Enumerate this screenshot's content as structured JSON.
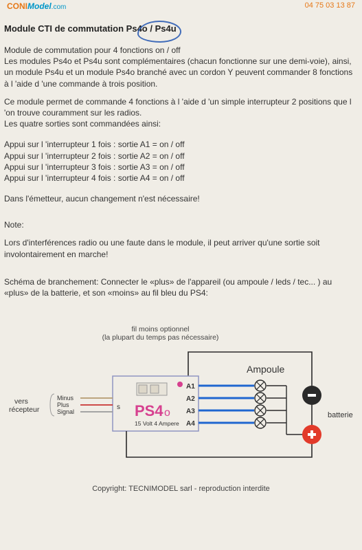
{
  "header": {
    "logo_orange_part": "CONI",
    "logo_blue_italic_part": "Model",
    "logo_dotcom": ".com",
    "phone": "04 75 03 13 87"
  },
  "title": "Module CTI de commutation Ps4o / Ps4u",
  "para1": "Module de commutation pour 4 fonctions on / off",
  "para1b": "Les modules Ps4o et Ps4u sont complémentaires (chacun fonctionne sur une demi-voie), ainsi, un module Ps4u et un module Ps4o branché avec un cordon Y peuvent commander 8 fonctions à l 'aide d 'une commande à trois position.",
  "para2": "Ce module permet de commande 4 fonctions à l 'aide d 'un simple interrupteur 2 positions que l 'on trouve couramment sur les radios.",
  "para2b": "Les quatre sorties sont commandées ainsi:",
  "lines": [
    "Appui sur l 'interrupteur 1 fois : sortie A1  = on / off",
    "Appui sur l 'interrupteur 2 fois : sortie A2 =  on / off",
    "Appui sur l 'interrupteur 3 fois : sortie A3 = on / off",
    "Appui sur l 'interrupteur 4 fois : sortie A4 = on / off"
  ],
  "para3": "Dans l'émetteur, aucun changement n'est nécessaire!",
  "note_label": "Note:",
  "note_body": "Lors d'interférences radio ou une faute dans le module, il peut arriver qu'une sortie soit involontairement en marche!",
  "schema": "Schéma de branchement: Connecter le «plus» de l'appareil (ou ampoule / leds / tec... ) au «plus» de la batterie, et son «moins» au fil bleu du PS4:",
  "diagram": {
    "top_label_line1": "fil moins optionnel",
    "top_label_line2": "(la plupart du temps pas nécessaire)",
    "ampoule_label": "Ampoule",
    "vers_recepteur": "vers récepteur",
    "receiver_pins": [
      "Minus",
      "Plus",
      "Signal"
    ],
    "module_name": "PS4o",
    "module_spec": "15 Volt  4 Ampere",
    "outputs": [
      "A1",
      "A2",
      "A3",
      "A4"
    ],
    "battery_label": "batterie",
    "s_label": "s",
    "colors": {
      "wire_black": "#2a2a2a",
      "wire_blue": "#1f66d0",
      "wire_red": "#c83232",
      "wire_minus": "#b59a6f",
      "module_border": "#8f95c2",
      "module_fill": "#f0ede6",
      "pink": "#d6408f",
      "gray": "#9a9a9a",
      "minus_circle_fill": "#2a2a2a",
      "plus_circle_fill": "#e23a2a",
      "text": "#333333"
    }
  },
  "copyright": "Copyright: TECNIMODEL sarl - reproduction interdite"
}
